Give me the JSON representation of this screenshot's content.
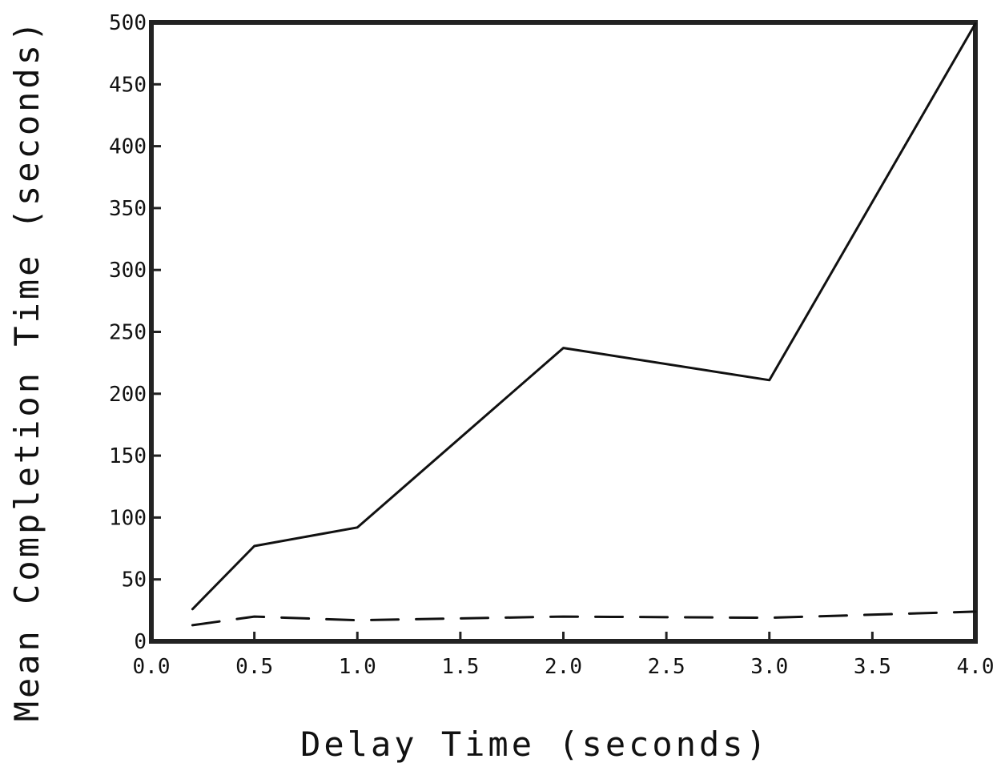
{
  "chart_data": {
    "type": "line",
    "title": "",
    "xlabel": "Delay Time (seconds)",
    "ylabel": "Mean Completion Time (seconds)",
    "xlim": [
      0.0,
      4.0
    ],
    "ylim": [
      0,
      500
    ],
    "x_ticks": [
      "0.0",
      "0.5",
      "1.0",
      "1.5",
      "2.0",
      "2.5",
      "3.0",
      "3.5",
      "4.0"
    ],
    "y_ticks": [
      "0",
      "50",
      "100",
      "150",
      "200",
      "250",
      "300",
      "350",
      "400",
      "450",
      "500"
    ],
    "grid": false,
    "legend": "none",
    "series": [
      {
        "style": "solid",
        "x": [
          0.2,
          0.5,
          1.0,
          2.0,
          3.0,
          4.0
        ],
        "y": [
          26,
          77,
          92,
          237,
          211,
          499
        ]
      },
      {
        "style": "dashed",
        "x": [
          0.2,
          0.5,
          1.0,
          2.0,
          3.0,
          4.0
        ],
        "y": [
          13,
          20,
          17,
          20,
          19,
          24
        ]
      }
    ],
    "colors": {
      "line": "#111111",
      "frame": "#222222",
      "background": "#ffffff"
    }
  }
}
